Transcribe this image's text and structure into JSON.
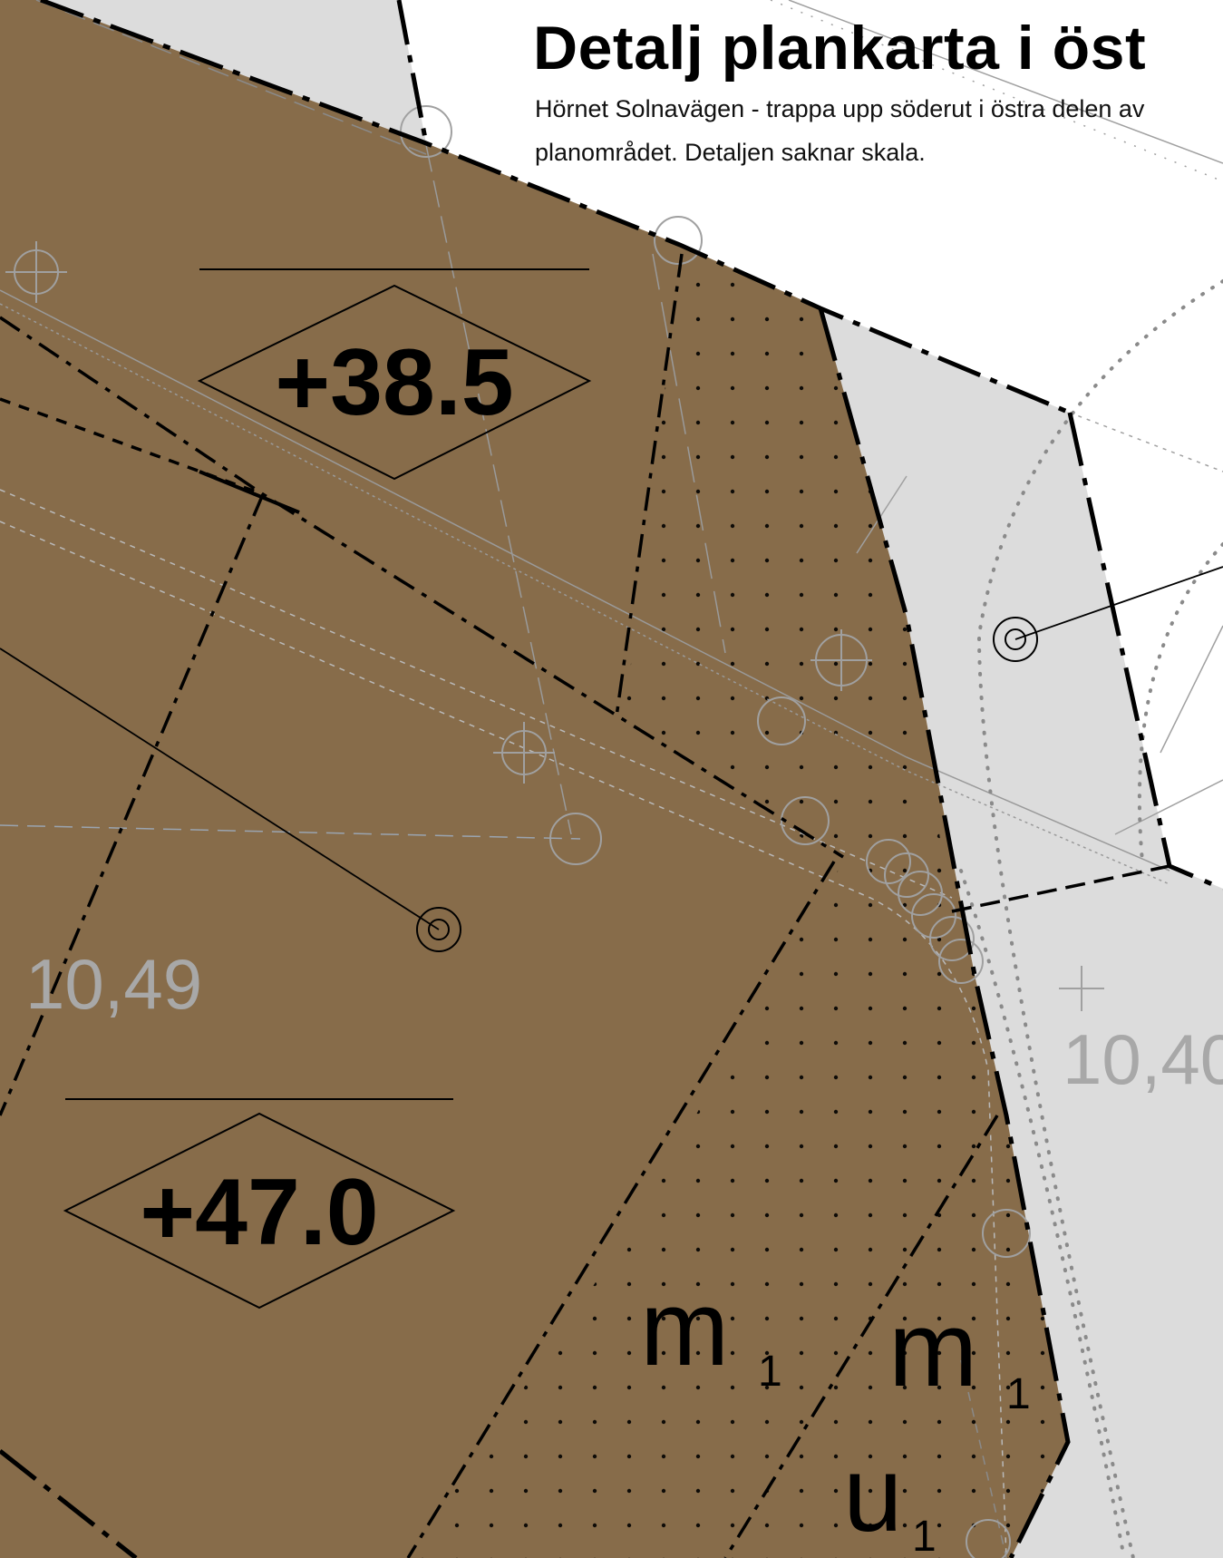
{
  "header": {
    "title": "Detalj plankarta i öst",
    "subtitle": "Hörnet Solnavägen - trappa upp söderut i östra delen av planområdet. Detaljen saknar skala."
  },
  "heights": {
    "upper": "+38.5",
    "lower": "+47.0"
  },
  "spot_heights": {
    "left": "10,49",
    "right": "10,40"
  },
  "zones": {
    "m1_left": {
      "letter": "m",
      "index": "1"
    },
    "m1_right": {
      "letter": "m",
      "index": "1"
    },
    "u1": {
      "letter": "u",
      "index": "1"
    }
  },
  "colors": {
    "land": "#876c4a",
    "street": "#dcdcdc",
    "background": "#ffffff",
    "line": "#000000"
  }
}
